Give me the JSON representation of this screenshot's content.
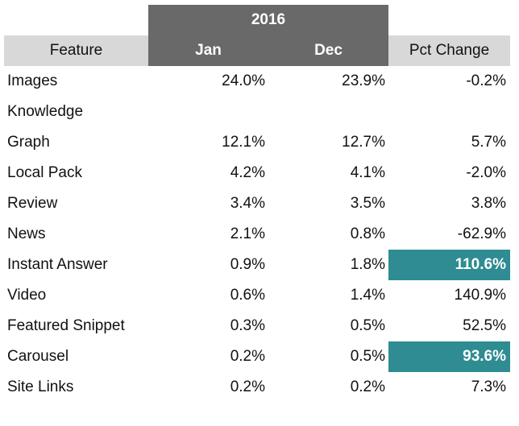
{
  "chart_data": {
    "type": "table",
    "group_header": "2016",
    "columns": [
      "Feature",
      "Jan",
      "Dec",
      "Pct Change"
    ],
    "rows": [
      {
        "feature": [
          "Images"
        ],
        "jan": "24.0%",
        "dec": "23.9%",
        "pct_change": "-0.2%",
        "highlight": false
      },
      {
        "feature": [
          "Knowledge",
          "Graph"
        ],
        "jan": "12.1%",
        "dec": "12.7%",
        "pct_change": "5.7%",
        "highlight": false
      },
      {
        "feature": [
          "Local Pack"
        ],
        "jan": "4.2%",
        "dec": "4.1%",
        "pct_change": "-2.0%",
        "highlight": false
      },
      {
        "feature": [
          "Review"
        ],
        "jan": "3.4%",
        "dec": "3.5%",
        "pct_change": "3.8%",
        "highlight": false
      },
      {
        "feature": [
          "News"
        ],
        "jan": "2.1%",
        "dec": "0.8%",
        "pct_change": "-62.9%",
        "highlight": false
      },
      {
        "feature": [
          "Instant Answer"
        ],
        "jan": "0.9%",
        "dec": "1.8%",
        "pct_change": "110.6%",
        "highlight": true
      },
      {
        "feature": [
          "Video"
        ],
        "jan": "0.6%",
        "dec": "1.4%",
        "pct_change": "140.9%",
        "highlight": false
      },
      {
        "feature": [
          "Featured Snippet"
        ],
        "jan": "0.3%",
        "dec": "0.5%",
        "pct_change": "52.5%",
        "highlight": false
      },
      {
        "feature": [
          "Carousel"
        ],
        "jan": "0.2%",
        "dec": "0.5%",
        "pct_change": "93.6%",
        "highlight": true
      },
      {
        "feature": [
          "Site Links"
        ],
        "jan": "0.2%",
        "dec": "0.2%",
        "pct_change": "7.3%",
        "highlight": false
      }
    ]
  },
  "colors": {
    "dark_header": "#696969",
    "light_header": "#d8d8d8",
    "highlight": "#2e8c92"
  }
}
